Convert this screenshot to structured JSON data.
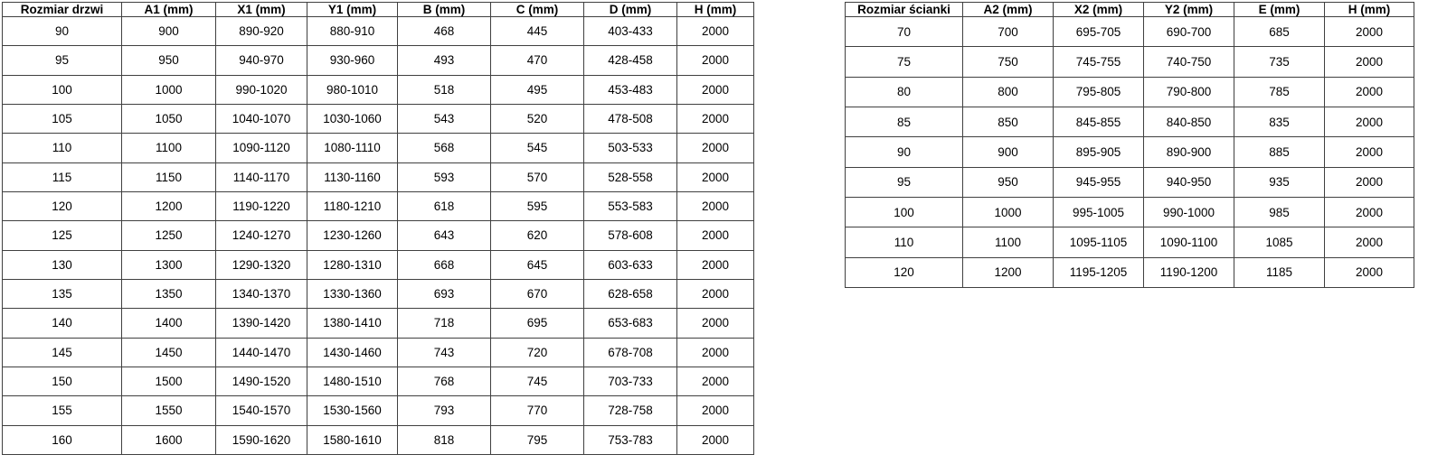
{
  "colors": {
    "border": "#404040",
    "text": "#000000",
    "background": "#ffffff"
  },
  "tables": [
    {
      "id": "door-sizes",
      "headers": [
        "Rozmiar drzwi",
        "A1 (mm)",
        "X1 (mm)",
        "Y1 (mm)",
        "B (mm)",
        "C (mm)",
        "D (mm)",
        "H (mm)"
      ],
      "rows": [
        [
          "90",
          "900",
          "890-920",
          "880-910",
          "468",
          "445",
          "403-433",
          "2000"
        ],
        [
          "95",
          "950",
          "940-970",
          "930-960",
          "493",
          "470",
          "428-458",
          "2000"
        ],
        [
          "100",
          "1000",
          "990-1020",
          "980-1010",
          "518",
          "495",
          "453-483",
          "2000"
        ],
        [
          "105",
          "1050",
          "1040-1070",
          "1030-1060",
          "543",
          "520",
          "478-508",
          "2000"
        ],
        [
          "110",
          "1100",
          "1090-1120",
          "1080-1110",
          "568",
          "545",
          "503-533",
          "2000"
        ],
        [
          "115",
          "1150",
          "1140-1170",
          "1130-1160",
          "593",
          "570",
          "528-558",
          "2000"
        ],
        [
          "120",
          "1200",
          "1190-1220",
          "1180-1210",
          "618",
          "595",
          "553-583",
          "2000"
        ],
        [
          "125",
          "1250",
          "1240-1270",
          "1230-1260",
          "643",
          "620",
          "578-608",
          "2000"
        ],
        [
          "130",
          "1300",
          "1290-1320",
          "1280-1310",
          "668",
          "645",
          "603-633",
          "2000"
        ],
        [
          "135",
          "1350",
          "1340-1370",
          "1330-1360",
          "693",
          "670",
          "628-658",
          "2000"
        ],
        [
          "140",
          "1400",
          "1390-1420",
          "1380-1410",
          "718",
          "695",
          "653-683",
          "2000"
        ],
        [
          "145",
          "1450",
          "1440-1470",
          "1430-1460",
          "743",
          "720",
          "678-708",
          "2000"
        ],
        [
          "150",
          "1500",
          "1490-1520",
          "1480-1510",
          "768",
          "745",
          "703-733",
          "2000"
        ],
        [
          "155",
          "1550",
          "1540-1570",
          "1530-1560",
          "793",
          "770",
          "728-758",
          "2000"
        ],
        [
          "160",
          "1600",
          "1590-1620",
          "1580-1610",
          "818",
          "795",
          "753-783",
          "2000"
        ]
      ]
    },
    {
      "id": "wall-panel-sizes",
      "headers": [
        "Rozmiar ścianki",
        "A2 (mm)",
        "X2 (mm)",
        "Y2 (mm)",
        "E (mm)",
        "H (mm)"
      ],
      "rows": [
        [
          "70",
          "700",
          "695-705",
          "690-700",
          "685",
          "2000"
        ],
        [
          "75",
          "750",
          "745-755",
          "740-750",
          "735",
          "2000"
        ],
        [
          "80",
          "800",
          "795-805",
          "790-800",
          "785",
          "2000"
        ],
        [
          "85",
          "850",
          "845-855",
          "840-850",
          "835",
          "2000"
        ],
        [
          "90",
          "900",
          "895-905",
          "890-900",
          "885",
          "2000"
        ],
        [
          "95",
          "950",
          "945-955",
          "940-950",
          "935",
          "2000"
        ],
        [
          "100",
          "1000",
          "995-1005",
          "990-1000",
          "985",
          "2000"
        ],
        [
          "110",
          "1100",
          "1095-1105",
          "1090-1100",
          "1085",
          "2000"
        ],
        [
          "120",
          "1200",
          "1195-1205",
          "1190-1200",
          "1185",
          "2000"
        ]
      ]
    }
  ]
}
